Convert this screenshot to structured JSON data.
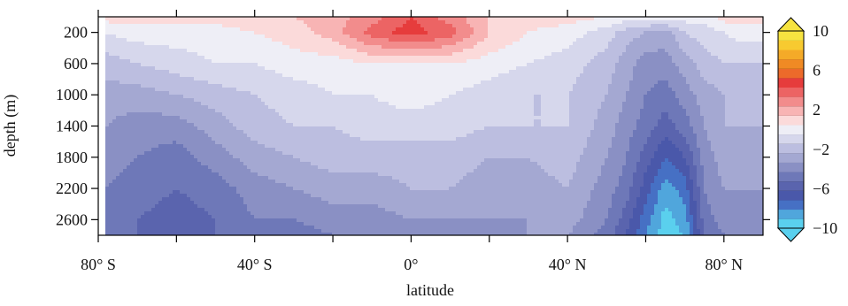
{
  "chart_data": {
    "type": "heatmap",
    "xlabel": "latitude",
    "ylabel": "depth (m)",
    "xlim": [
      -80,
      90
    ],
    "ylim": [
      2800,
      0
    ],
    "x_ticks": [
      {
        "value": -80,
        "label": "80° S"
      },
      {
        "value": -40,
        "label": "40° S"
      },
      {
        "value": 0,
        "label": "0°"
      },
      {
        "value": 40,
        "label": "40° N"
      },
      {
        "value": 80,
        "label": "80° N"
      }
    ],
    "x_minor_ticks": [
      -60,
      -20,
      20,
      60
    ],
    "y_ticks": [
      {
        "value": 200,
        "label": "200"
      },
      {
        "value": 600,
        "label": "600"
      },
      {
        "value": 1000,
        "label": "1000"
      },
      {
        "value": 1400,
        "label": "1400"
      },
      {
        "value": 1800,
        "label": "1800"
      },
      {
        "value": 2200,
        "label": "2200"
      },
      {
        "value": 2600,
        "label": "2600"
      }
    ],
    "colorbar": {
      "min": -10,
      "max": 10,
      "ticks": [
        {
          "value": 10,
          "label": "10"
        },
        {
          "value": 6,
          "label": "6"
        },
        {
          "value": 2,
          "label": "2"
        },
        {
          "value": -2,
          "label": "−2"
        },
        {
          "value": -6,
          "label": "−6"
        },
        {
          "value": -10,
          "label": "−10"
        }
      ],
      "extend": "both"
    },
    "levels": [
      {
        "value": -10,
        "color": "#5ad0ee"
      },
      {
        "value": -9,
        "color": "#50a6dc"
      },
      {
        "value": -8,
        "color": "#4670c4"
      },
      {
        "value": -7,
        "color": "#4a58aa"
      },
      {
        "value": -6,
        "color": "#5a64ae"
      },
      {
        "value": -5,
        "color": "#6e78b8"
      },
      {
        "value": -4,
        "color": "#8a90c4"
      },
      {
        "value": -3,
        "color": "#a4a8d2"
      },
      {
        "value": -2,
        "color": "#bcbee0"
      },
      {
        "value": -1,
        "color": "#d6d7ec"
      },
      {
        "value": 0,
        "color": "#eeeef6"
      },
      {
        "value": 1,
        "color": "#fbdada"
      },
      {
        "value": 2,
        "color": "#f8b4b4"
      },
      {
        "value": 3,
        "color": "#f28c8c"
      },
      {
        "value": 4,
        "color": "#ec6464"
      },
      {
        "value": 5,
        "color": "#e63c3c"
      },
      {
        "value": 6,
        "color": "#ec6a2a"
      },
      {
        "value": 7,
        "color": "#f08a24"
      },
      {
        "value": 8,
        "color": "#f4aa28"
      },
      {
        "value": 9,
        "color": "#f7ca30"
      },
      {
        "value": 10,
        "color": "#f6e340"
      }
    ],
    "no_data_region": {
      "lat_max": -78
    },
    "field": {
      "lat": [
        -78,
        -70,
        -60,
        -50,
        -40,
        -30,
        -20,
        -10,
        0,
        10,
        20,
        30,
        40,
        50,
        55,
        60,
        65,
        70,
        75,
        80,
        85,
        90
      ],
      "depth": [
        0,
        200,
        600,
        1000,
        1400,
        1800,
        2200,
        2600,
        2800
      ],
      "values": [
        [
          1.0,
          1.0,
          1.0,
          1.0,
          1.5,
          1.5,
          2.0,
          3.0,
          4.5,
          3.0,
          1.5,
          1.0,
          1.0,
          0.5,
          0.0,
          0.0,
          0.0,
          0.0,
          0.0,
          1.0,
          1.0,
          1.0
        ],
        [
          -0.5,
          0.0,
          0.0,
          0.0,
          0.5,
          1.0,
          2.0,
          4.0,
          5.0,
          4.0,
          1.5,
          0.5,
          0.0,
          -1.0,
          -2.0,
          -2.5,
          -3.0,
          -1.5,
          -1.0,
          -0.5,
          0.0,
          0.0
        ],
        [
          -2.0,
          -1.5,
          -1.0,
          -0.5,
          -0.5,
          0.0,
          0.0,
          0.5,
          0.5,
          0.5,
          0.0,
          -0.5,
          -1.0,
          -2.0,
          -3.0,
          -4.0,
          -4.0,
          -3.0,
          -2.0,
          -1.5,
          -1.5,
          -1.5
        ],
        [
          -3.0,
          -3.0,
          -2.5,
          -2.0,
          -1.5,
          -1.0,
          -0.5,
          -0.5,
          0.0,
          -0.5,
          -1.0,
          -1.5,
          -1.5,
          -2.5,
          -3.5,
          -4.5,
          -5.0,
          -4.0,
          -3.0,
          -2.5,
          -2.0,
          -2.0
        ],
        [
          -3.5,
          -4.0,
          -4.0,
          -3.0,
          -2.0,
          -1.5,
          -1.5,
          -1.0,
          -1.0,
          -1.0,
          -1.5,
          -1.5,
          -1.5,
          -3.0,
          -4.0,
          -5.0,
          -6.0,
          -5.0,
          -3.5,
          -2.5,
          -2.5,
          -2.5
        ],
        [
          -4.0,
          -4.5,
          -5.0,
          -4.0,
          -3.0,
          -2.5,
          -2.0,
          -2.0,
          -2.0,
          -2.0,
          -2.5,
          -2.5,
          -2.0,
          -3.5,
          -4.5,
          -6.0,
          -7.5,
          -6.5,
          -4.0,
          -3.0,
          -3.0,
          -3.0
        ],
        [
          -4.5,
          -5.0,
          -5.5,
          -5.0,
          -4.0,
          -3.5,
          -3.0,
          -3.0,
          -2.5,
          -2.5,
          -3.0,
          -3.0,
          -2.5,
          -4.0,
          -5.0,
          -7.0,
          -9.0,
          -8.0,
          -4.5,
          -3.5,
          -3.5,
          -3.5
        ],
        [
          -5.0,
          -5.5,
          -6.0,
          -5.5,
          -4.5,
          -4.5,
          -4.0,
          -4.0,
          -3.5,
          -3.5,
          -3.5,
          -3.5,
          -3.0,
          -4.5,
          -6.0,
          -8.0,
          -10.0,
          -9.0,
          -5.0,
          -4.0,
          -4.0,
          -4.0
        ],
        [
          -5.0,
          -5.5,
          -6.0,
          -5.5,
          -5.0,
          -5.0,
          -4.5,
          -4.5,
          -4.0,
          -4.0,
          -4.0,
          -3.5,
          -3.5,
          -5.0,
          -6.5,
          -8.5,
          -10.0,
          -9.5,
          -5.5,
          -4.5,
          -4.5,
          -4.5
        ]
      ]
    }
  }
}
